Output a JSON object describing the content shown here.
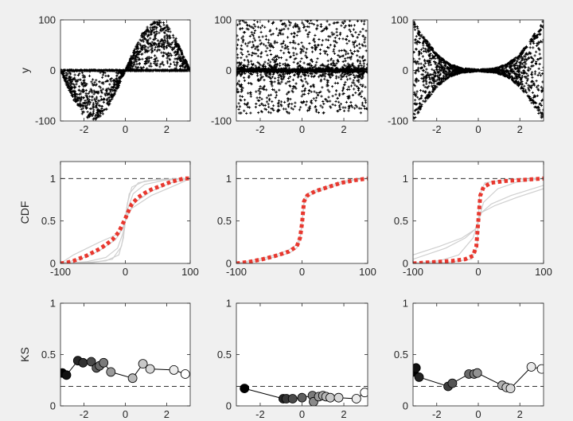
{
  "figure": {
    "background": "#f0f0f0",
    "axes_background": "#ffffff"
  },
  "chart_data": [
    {
      "id": "scatter-sine",
      "type": "scatter",
      "row": 0,
      "col": 0,
      "xlim": [
        -3.14,
        3.14
      ],
      "ylim": [
        -100,
        100
      ],
      "xticks": [
        -2,
        0,
        2
      ],
      "xtick_labels": [
        "-2",
        "0",
        "2"
      ],
      "yticks": [
        -100,
        0,
        100
      ],
      "ytick_labels": [
        "-100",
        "0",
        "100"
      ],
      "ylabel": "y",
      "marker": "+",
      "color": "#000000",
      "grid": false,
      "series": [
        {
          "pattern": "amplitude 100*sin(x), points filled between 0 and envelope, dense line along y=0",
          "x": [
            -3.14,
            -2.8,
            -2.4,
            -2.0,
            -1.6,
            -1.2,
            -0.8,
            -0.4,
            0,
            0.4,
            0.8,
            1.2,
            1.6,
            2.0,
            2.4,
            2.8,
            3.14
          ],
          "y_envelope": [
            0,
            -33,
            -68,
            -91,
            -100,
            -93,
            -72,
            -39,
            0,
            39,
            72,
            93,
            100,
            91,
            68,
            33,
            0
          ]
        }
      ]
    },
    {
      "id": "scatter-noise",
      "type": "scatter",
      "row": 0,
      "col": 1,
      "xlim": [
        -3.14,
        3.14
      ],
      "ylim": [
        -100,
        100
      ],
      "xticks": [
        -2,
        0,
        2
      ],
      "xtick_labels": [
        "-2",
        "0",
        "2"
      ],
      "yticks": [
        -100,
        0,
        100
      ],
      "ytick_labels": [
        "-100",
        "0",
        "100"
      ],
      "marker": "+",
      "color": "#000000",
      "grid": false,
      "series": [
        {
          "pattern": "uniform noise between -85 and 100 plus dense band near y=0",
          "x_range": [
            -3.14,
            3.14
          ],
          "y_range": [
            -85,
            100
          ]
        }
      ]
    },
    {
      "id": "scatter-bowtie",
      "type": "scatter",
      "row": 0,
      "col": 2,
      "xlim": [
        -3.14,
        3.14
      ],
      "ylim": [
        -100,
        100
      ],
      "xticks": [
        -2,
        0,
        2
      ],
      "xtick_labels": [
        "-2",
        "0",
        "2"
      ],
      "yticks": [
        -100,
        0,
        100
      ],
      "ytick_labels": [
        "-100",
        "0",
        "100"
      ],
      "marker": "+",
      "color": "#000000",
      "grid": false,
      "series": [
        {
          "pattern": "symmetric envelope growing with |x|",
          "x": [
            -3.14,
            -2.6,
            -2.0,
            -1.4,
            -0.8,
            0,
            0.8,
            1.4,
            2.0,
            2.6,
            3.14
          ],
          "y_envelope": [
            100,
            66,
            33,
            13,
            4,
            1,
            4,
            13,
            33,
            66,
            100
          ]
        }
      ]
    },
    {
      "id": "cdf-sine",
      "type": "line",
      "row": 1,
      "col": 0,
      "xlim": [
        -100,
        100
      ],
      "ylim": [
        0,
        1.2
      ],
      "xticks": [
        -100,
        0,
        100
      ],
      "xtick_labels": [
        "-100",
        "0",
        "100"
      ],
      "yticks": [
        0,
        0.5,
        1
      ],
      "ytick_labels": [
        "0",
        "0.5",
        "1"
      ],
      "ylabel": "CDF",
      "reference_line": {
        "y": 1,
        "style": "dashed",
        "color": "#333333"
      },
      "series": [
        {
          "name": "",
          "style": "thick-dotted",
          "color": "#e8382f",
          "x": [
            -100,
            -90,
            -80,
            -70,
            -60,
            -50,
            -40,
            -30,
            -20,
            -10,
            -5,
            0,
            5,
            10,
            20,
            30,
            40,
            50,
            60,
            70,
            80,
            90,
            100
          ],
          "y": [
            0,
            0.01,
            0.03,
            0.06,
            0.09,
            0.13,
            0.17,
            0.22,
            0.28,
            0.37,
            0.45,
            0.53,
            0.62,
            0.7,
            0.78,
            0.83,
            0.87,
            0.9,
            0.93,
            0.96,
            0.98,
            1.0,
            1.0
          ]
        },
        {
          "name": "",
          "style": "thin",
          "color": "#cfcfcf",
          "x": [
            -100,
            -60,
            -30,
            -10,
            -3,
            0,
            3,
            10,
            30,
            60,
            100
          ],
          "y": [
            0,
            0.01,
            0.03,
            0.1,
            0.3,
            0.5,
            0.7,
            0.9,
            0.97,
            0.99,
            1
          ]
        },
        {
          "name": "",
          "style": "thin",
          "color": "#cfcfcf",
          "x": [
            -100,
            -60,
            -30,
            -12,
            -4,
            0,
            4,
            12,
            30,
            60,
            100
          ],
          "y": [
            0,
            0.02,
            0.07,
            0.18,
            0.35,
            0.5,
            0.65,
            0.82,
            0.93,
            0.98,
            1
          ]
        },
        {
          "name": "",
          "style": "thin",
          "color": "#cfcfcf",
          "x": [
            -100,
            -70,
            -40,
            -15,
            -5,
            0,
            5,
            15,
            40,
            70,
            100
          ],
          "y": [
            0,
            0.05,
            0.15,
            0.28,
            0.4,
            0.5,
            0.6,
            0.72,
            0.85,
            0.95,
            1
          ]
        },
        {
          "name": "",
          "style": "thin",
          "color": "#cfcfcf",
          "x": [
            -100,
            -80,
            -40,
            -10,
            -2,
            0,
            2,
            10,
            40,
            80,
            100
          ],
          "y": [
            0,
            0.1,
            0.25,
            0.35,
            0.45,
            0.5,
            0.55,
            0.65,
            0.8,
            0.93,
            1
          ]
        },
        {
          "name": "",
          "style": "thin",
          "color": "#cfcfcf",
          "x": [
            -100,
            -50,
            -20,
            -6,
            -1,
            0,
            1,
            6,
            20,
            50,
            100
          ],
          "y": [
            0,
            0.01,
            0.05,
            0.2,
            0.42,
            0.5,
            0.6,
            0.82,
            0.95,
            0.99,
            1
          ]
        }
      ]
    },
    {
      "id": "cdf-noise",
      "type": "line",
      "row": 1,
      "col": 1,
      "xlim": [
        -100,
        100
      ],
      "ylim": [
        0,
        1.2
      ],
      "xticks": [
        -100,
        0,
        100
      ],
      "xtick_labels": [
        "-100",
        "0",
        "100"
      ],
      "yticks": [
        0,
        0.5,
        1
      ],
      "ytick_labels": [
        "0",
        "0.5",
        "1"
      ],
      "reference_line": {
        "y": 1,
        "style": "dashed",
        "color": "#333333"
      },
      "series": [
        {
          "name": "",
          "style": "thick-dotted",
          "color": "#e8382f",
          "x": [
            -100,
            -80,
            -60,
            -40,
            -20,
            -8,
            -3,
            0,
            3,
            8,
            20,
            40,
            60,
            80,
            100
          ],
          "y": [
            0,
            0.02,
            0.05,
            0.09,
            0.14,
            0.2,
            0.3,
            0.47,
            0.73,
            0.8,
            0.85,
            0.9,
            0.95,
            0.98,
            1.0
          ]
        },
        {
          "name": "",
          "style": "thin",
          "color": "#cfcfcf",
          "x": [
            -100,
            -80,
            -60,
            -40,
            -20,
            -8,
            -3,
            0,
            3,
            8,
            20,
            40,
            60,
            80,
            100
          ],
          "y": [
            0,
            0.03,
            0.06,
            0.1,
            0.16,
            0.22,
            0.32,
            0.48,
            0.7,
            0.78,
            0.84,
            0.89,
            0.94,
            0.98,
            1
          ]
        },
        {
          "name": "",
          "style": "thin",
          "color": "#cfcfcf",
          "x": [
            -100,
            -80,
            -60,
            -40,
            -20,
            -8,
            -3,
            0,
            3,
            8,
            20,
            40,
            60,
            80,
            100
          ],
          "y": [
            0,
            0.01,
            0.04,
            0.08,
            0.12,
            0.18,
            0.28,
            0.46,
            0.75,
            0.82,
            0.86,
            0.91,
            0.96,
            0.99,
            1
          ]
        }
      ]
    },
    {
      "id": "cdf-bowtie",
      "type": "line",
      "row": 1,
      "col": 2,
      "xlim": [
        -100,
        100
      ],
      "ylim": [
        0,
        1.2
      ],
      "xticks": [
        -100,
        0,
        100
      ],
      "xtick_labels": [
        "-100",
        "0",
        "100"
      ],
      "yticks": [
        0,
        0.5,
        1
      ],
      "ytick_labels": [
        "0",
        "0.5",
        "1"
      ],
      "reference_line": {
        "y": 1,
        "style": "dashed",
        "color": "#333333"
      },
      "series": [
        {
          "name": "",
          "style": "thick-dotted",
          "color": "#e8382f",
          "x": [
            -100,
            -80,
            -60,
            -40,
            -20,
            -8,
            -3,
            0,
            3,
            8,
            20,
            40,
            60,
            80,
            100
          ],
          "y": [
            0,
            0.01,
            0.02,
            0.03,
            0.05,
            0.09,
            0.2,
            0.5,
            0.8,
            0.9,
            0.95,
            0.97,
            0.98,
            0.99,
            1.0
          ]
        },
        {
          "name": "",
          "style": "thin",
          "color": "#cfcfcf",
          "x": [
            -100,
            -50,
            -20,
            -5,
            0,
            5,
            20,
            50,
            100
          ],
          "y": [
            0.05,
            0.18,
            0.3,
            0.4,
            0.5,
            0.6,
            0.7,
            0.8,
            0.92
          ]
        },
        {
          "name": "",
          "style": "thin",
          "color": "#cfcfcf",
          "x": [
            -100,
            -60,
            -25,
            -5,
            0,
            5,
            25,
            60,
            100
          ],
          "y": [
            0.1,
            0.2,
            0.3,
            0.4,
            0.5,
            0.6,
            0.68,
            0.78,
            0.88
          ]
        },
        {
          "name": "",
          "style": "thin",
          "color": "#cfcfcf",
          "x": [
            -100,
            -60,
            -30,
            -8,
            0,
            8,
            30,
            60,
            100
          ],
          "y": [
            0,
            0.03,
            0.1,
            0.3,
            0.5,
            0.72,
            0.88,
            0.96,
            1
          ]
        },
        {
          "name": "",
          "style": "thin",
          "color": "#cfcfcf",
          "x": [
            -100,
            -50,
            -10,
            -2,
            0,
            2,
            10,
            50,
            100
          ],
          "y": [
            0,
            0.01,
            0.05,
            0.2,
            0.5,
            0.8,
            0.95,
            0.99,
            1
          ]
        }
      ]
    },
    {
      "id": "ks-sine",
      "type": "line",
      "row": 2,
      "col": 0,
      "xlim": [
        -3.14,
        3.14
      ],
      "ylim": [
        0,
        1
      ],
      "xticks": [
        -2,
        0,
        2
      ],
      "xtick_labels": [
        "-2",
        "0",
        "2"
      ],
      "yticks": [
        0,
        0.5,
        1
      ],
      "ytick_labels": [
        "0",
        "0.5",
        "1"
      ],
      "ylabel": "KS",
      "reference_line": {
        "y": 0.19,
        "style": "dashed",
        "color": "#333333"
      },
      "series": [
        {
          "marker": "filled-circle",
          "line_color": "#000000",
          "x": [
            -3.05,
            -2.85,
            -2.3,
            -2.05,
            -1.65,
            -1.4,
            -1.25,
            -1.05,
            -0.7,
            0.35,
            0.85,
            1.2,
            2.35,
            2.9
          ],
          "y": [
            0.32,
            0.3,
            0.44,
            0.42,
            0.43,
            0.37,
            0.39,
            0.42,
            0.33,
            0.27,
            0.41,
            0.36,
            0.35,
            0.31
          ],
          "marker_colors": [
            "#000000",
            "#111111",
            "#262626",
            "#303030",
            "#4a4a4a",
            "#5e5e5e",
            "#6a6a6a",
            "#7a7a7a",
            "#9a9a9a",
            "#b8b8b8",
            "#c8c8c8",
            "#d8d8d8",
            "#ececec",
            "#ffffff"
          ]
        }
      ]
    },
    {
      "id": "ks-noise",
      "type": "line",
      "row": 2,
      "col": 1,
      "xlim": [
        -3.14,
        3.14
      ],
      "ylim": [
        0,
        1
      ],
      "xticks": [
        -2,
        0,
        2
      ],
      "xtick_labels": [
        "-2",
        "0",
        "2"
      ],
      "yticks": [
        0,
        0.5,
        1
      ],
      "ytick_labels": [
        "0",
        "0.5",
        "1"
      ],
      "reference_line": {
        "y": 0.19,
        "style": "dashed",
        "color": "#333333"
      },
      "series": [
        {
          "marker": "filled-circle",
          "line_color": "#000000",
          "x": [
            -2.75,
            -0.9,
            -0.75,
            -0.45,
            0,
            0.5,
            0.55,
            0.8,
            1.0,
            1.15,
            1.35,
            1.75,
            2.6,
            3.0
          ],
          "y": [
            0.17,
            0.07,
            0.07,
            0.07,
            0.08,
            0.1,
            0.04,
            0.09,
            0.1,
            0.09,
            0.08,
            0.08,
            0.07,
            0.13
          ],
          "marker_colors": [
            "#000000",
            "#262626",
            "#363636",
            "#4a4a4a",
            "#5e5e5e",
            "#7a7a7a",
            "#8a8a8a",
            "#9a9a9a",
            "#a8a8a8",
            "#b8b8b8",
            "#c8c8c8",
            "#d8d8d8",
            "#ececec",
            "#ffffff"
          ]
        }
      ]
    },
    {
      "id": "ks-bowtie",
      "type": "line",
      "row": 2,
      "col": 2,
      "xlim": [
        -3.14,
        3.14
      ],
      "ylim": [
        0,
        1
      ],
      "xticks": [
        -2,
        0,
        2
      ],
      "xtick_labels": [
        "-2",
        "0",
        "2"
      ],
      "yticks": [
        0,
        0.5,
        1
      ],
      "ytick_labels": [
        "0",
        "0.5",
        "1"
      ],
      "reference_line": {
        "y": 0.19,
        "style": "dashed",
        "color": "#333333"
      },
      "series": [
        {
          "marker": "filled-circle",
          "line_color": "#000000",
          "x": [
            -3.1,
            -3.0,
            -2.85,
            -1.45,
            -1.25,
            -0.45,
            -0.2,
            -0.05,
            1.15,
            1.35,
            1.55,
            2.55,
            3.05
          ],
          "y": [
            0.33,
            0.37,
            0.28,
            0.19,
            0.22,
            0.31,
            0.31,
            0.32,
            0.2,
            0.18,
            0.17,
            0.38,
            0.36
          ],
          "marker_colors": [
            "#000000",
            "#111111",
            "#222222",
            "#3e3e3e",
            "#555555",
            "#6a6a6a",
            "#7e7e7e",
            "#929292",
            "#b0b0b0",
            "#c4c4c4",
            "#d6d6d6",
            "#eaeaea",
            "#ffffff"
          ]
        }
      ]
    }
  ]
}
